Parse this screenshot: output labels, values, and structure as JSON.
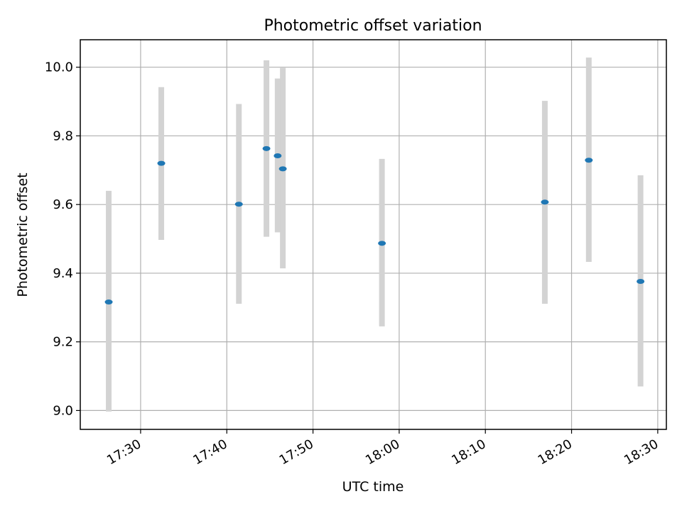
{
  "chart_data": {
    "type": "scatter",
    "title": "Photometric offset variation",
    "xlabel": "UTC time",
    "ylabel": "Photometric offset",
    "xlim": [
      1043,
      1111
    ],
    "ylim": [
      8.945,
      10.08
    ],
    "grid": true,
    "x_ticks": [
      {
        "value": 1050,
        "label": "17:30"
      },
      {
        "value": 1060,
        "label": "17:40"
      },
      {
        "value": 1070,
        "label": "17:50"
      },
      {
        "value": 1080,
        "label": "18:00"
      },
      {
        "value": 1090,
        "label": "18:10"
      },
      {
        "value": 1100,
        "label": "18:20"
      },
      {
        "value": 1110,
        "label": "18:30"
      }
    ],
    "y_ticks": [
      {
        "value": 9.0,
        "label": "9.0"
      },
      {
        "value": 9.2,
        "label": "9.2"
      },
      {
        "value": 9.4,
        "label": "9.4"
      },
      {
        "value": 9.6,
        "label": "9.6"
      },
      {
        "value": 9.8,
        "label": "9.8"
      },
      {
        "value": 10.0,
        "label": "10.0"
      }
    ],
    "points": [
      {
        "time": "17:26",
        "x": 1046.3,
        "y": 9.316,
        "y_low": 8.997,
        "y_high": 9.64
      },
      {
        "time": "17:32",
        "x": 1052.4,
        "y": 9.72,
        "y_low": 9.497,
        "y_high": 9.942
      },
      {
        "time": "17:41",
        "x": 1061.4,
        "y": 9.601,
        "y_low": 9.311,
        "y_high": 9.893
      },
      {
        "time": "17:44",
        "x": 1064.6,
        "y": 9.763,
        "y_low": 9.506,
        "y_high": 10.02
      },
      {
        "time": "17:45",
        "x": 1065.9,
        "y": 9.742,
        "y_low": 9.519,
        "y_high": 9.967
      },
      {
        "time": "17:46",
        "x": 1066.5,
        "y": 9.704,
        "y_low": 9.414,
        "y_high": 9.998
      },
      {
        "time": "17:58",
        "x": 1078.0,
        "y": 9.487,
        "y_low": 9.245,
        "y_high": 9.733
      },
      {
        "time": "18:16",
        "x": 1096.9,
        "y": 9.607,
        "y_low": 9.311,
        "y_high": 9.902
      },
      {
        "time": "18:22",
        "x": 1102.0,
        "y": 9.729,
        "y_low": 9.433,
        "y_high": 10.028
      },
      {
        "time": "18:27",
        "x": 1108.0,
        "y": 9.376,
        "y_low": 9.07,
        "y_high": 9.685
      }
    ]
  }
}
